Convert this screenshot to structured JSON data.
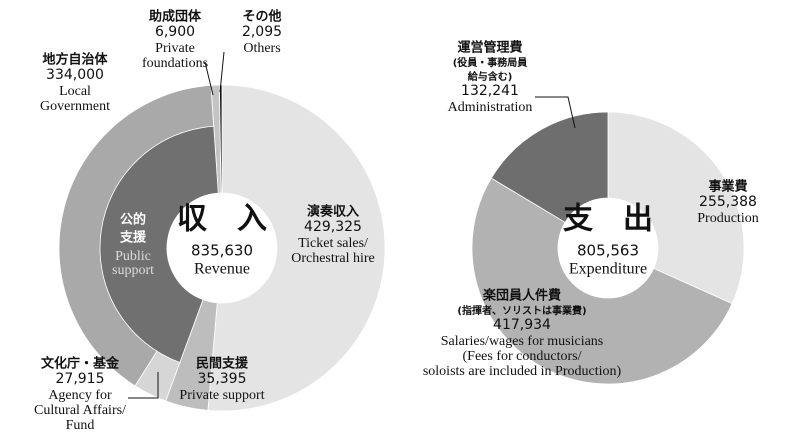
{
  "chart_data": [
    {
      "type": "donut",
      "title": "収　入",
      "total": 835630,
      "total_label": "835,630",
      "subtitle": "Revenue",
      "categories": [
        "演奏収入",
        "民間支援",
        "文化庁・基金",
        "地方自治体",
        "助成団体",
        "その他"
      ],
      "labels_en": [
        [
          "Ticket sales/",
          "Orchestral hire"
        ],
        [
          "Private support"
        ],
        [
          "Agency for",
          "Cultural Affairs/",
          "Fund"
        ],
        [
          "Local",
          "Government"
        ],
        [
          "Private",
          "foundations"
        ],
        [
          "Others"
        ]
      ],
      "values": [
        429325,
        35395,
        27915,
        334000,
        6900,
        2095
      ],
      "value_labels": [
        "429,325",
        "35,395",
        "27,915",
        "334,000",
        "6,900",
        "2,095"
      ],
      "colors": [
        "#e4e4e4",
        "#bdbdbd",
        "#d6d6d6",
        "#a9a9a9",
        "#c4c4c4",
        "#111111"
      ],
      "group": {
        "label": [
          "公的",
          "支援"
        ],
        "label_en": [
          "Public",
          "support"
        ],
        "color": "#707070"
      }
    },
    {
      "type": "donut",
      "title": "支　出",
      "total": 805563,
      "total_label": "805,563",
      "subtitle": "Expenditure",
      "categories": [
        "事業費",
        "楽団員人件費",
        "運営管理費"
      ],
      "notes": [
        [],
        [
          "(指揮者、ソリストは事業費)"
        ],
        [
          "(役員・事務局員",
          "給与含む)"
        ]
      ],
      "labels_en": [
        [
          "Production"
        ],
        [
          "Salaries/wages for musicians",
          "(Fees for conductors/",
          "soloists are included in Production)"
        ],
        [
          "Administration"
        ]
      ],
      "values": [
        255388,
        417934,
        132241
      ],
      "value_labels": [
        "255,388",
        "417,934",
        "132,241"
      ],
      "colors": [
        "#e4e4e4",
        "#b2b2b2",
        "#6e6e6e"
      ]
    }
  ]
}
